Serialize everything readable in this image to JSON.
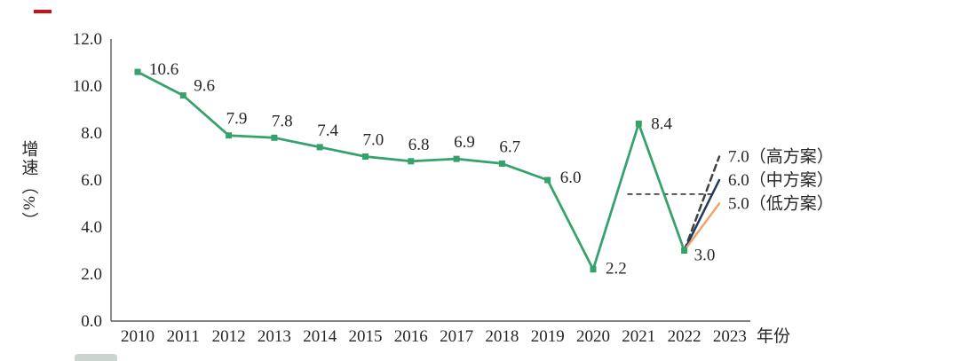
{
  "page": {
    "background": "#ffffff"
  },
  "artifacts": {
    "top_left_red_dash": "red-dash-fragment",
    "bottom_left_fragment": "cropped-legend-fragment"
  },
  "chart_data": {
    "type": "line",
    "title": "",
    "xlabel": "年份",
    "ylabel": "增速（%）",
    "ylim": [
      0,
      12
    ],
    "y_tick_step": 2,
    "y_tick_labels": [
      "12.0",
      "10.0",
      "8.0",
      "6.0",
      "4.0",
      "2.0",
      "0.0"
    ],
    "categories": [
      "2010",
      "2011",
      "2012",
      "2013",
      "2014",
      "2015",
      "2016",
      "2017",
      "2018",
      "2019",
      "2020",
      "2021",
      "2022",
      "2023"
    ],
    "series": [
      {
        "key": "actual",
        "name": "增速",
        "color": "#35a26b",
        "marker": "square",
        "dash": false,
        "values": [
          10.6,
          9.6,
          7.9,
          7.8,
          7.4,
          7.0,
          6.8,
          6.9,
          6.7,
          6.0,
          2.2,
          8.4,
          3.0,
          null
        ]
      },
      {
        "key": "high",
        "name": "高方案",
        "color": "#404040",
        "dash": true,
        "values": [
          null,
          null,
          null,
          null,
          null,
          null,
          null,
          null,
          null,
          null,
          null,
          null,
          3.0,
          7.0
        ],
        "end_label": "7.0（高方案）"
      },
      {
        "key": "mid",
        "name": "中方案",
        "color": "#1f3864",
        "dash": false,
        "values": [
          null,
          null,
          null,
          null,
          null,
          null,
          null,
          null,
          null,
          null,
          null,
          null,
          3.0,
          6.0
        ],
        "end_label": "6.0（中方案）"
      },
      {
        "key": "low",
        "name": "低方案",
        "color": "#f3a26a",
        "dash": false,
        "values": [
          null,
          null,
          null,
          null,
          null,
          null,
          null,
          null,
          null,
          null,
          null,
          null,
          3.0,
          5.0
        ],
        "end_label": "5.0（低方案）"
      }
    ],
    "point_labels": [
      "10.6",
      "9.6",
      "7.9",
      "7.8",
      "7.4",
      "7.0",
      "6.8",
      "6.9",
      "6.7",
      "6.0",
      "2.2",
      "8.4",
      "3.0"
    ],
    "reference_segment": {
      "value": 5.4,
      "x_from_index": 10.75,
      "x_to_index": 12.6,
      "dash": true,
      "color": "#404040"
    },
    "axis_color": "#595959",
    "label_color": "#404040",
    "grid": false,
    "legend_position": "none"
  }
}
